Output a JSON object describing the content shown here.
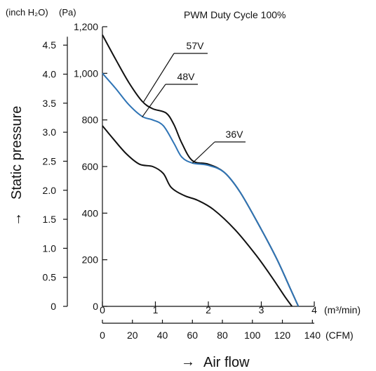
{
  "chart_data": {
    "type": "line",
    "title": "PWM Duty Cycle 100%",
    "xlabel": "Air flow",
    "ylabel": "Static pressure",
    "x_unit": "(m³/min)",
    "x_unit_secondary": "(CFM)",
    "y_unit": "(Pa)",
    "y_unit_secondary": "(inch H₂O)",
    "xlim": [
      0,
      4
    ],
    "ylim": [
      0,
      1200
    ],
    "x_ticks": [
      {
        "value": 0,
        "label": "0"
      },
      {
        "value": 1,
        "label": "1"
      },
      {
        "value": 2,
        "label": "2"
      },
      {
        "value": 3,
        "label": "3"
      },
      {
        "value": 4,
        "label": "4"
      }
    ],
    "x_ticks_secondary": [
      {
        "value": 0,
        "label": "0"
      },
      {
        "value": 20,
        "label": "20"
      },
      {
        "value": 40,
        "label": "40"
      },
      {
        "value": 60,
        "label": "60"
      },
      {
        "value": 80,
        "label": "80"
      },
      {
        "value": 100,
        "label": "100"
      },
      {
        "value": 120,
        "label": "120"
      },
      {
        "value": 140,
        "label": "140"
      }
    ],
    "y_ticks": [
      {
        "value": 0,
        "label": "0"
      },
      {
        "value": 200,
        "label": "200"
      },
      {
        "value": 400,
        "label": "400"
      },
      {
        "value": 600,
        "label": "600"
      },
      {
        "value": 800,
        "label": "800"
      },
      {
        "value": 1000,
        "label": "1,000"
      },
      {
        "value": 1200,
        "label": "1,200"
      }
    ],
    "y_ticks_secondary": [
      {
        "value": 0,
        "label": "0"
      },
      {
        "value": 0.5,
        "label": "0.5"
      },
      {
        "value": 1.0,
        "label": "1.0"
      },
      {
        "value": 1.5,
        "label": "1.5"
      },
      {
        "value": 2.0,
        "label": "2.0"
      },
      {
        "value": 2.5,
        "label": "2.5"
      },
      {
        "value": 3.0,
        "label": "3.0"
      },
      {
        "value": 3.5,
        "label": "3.5"
      },
      {
        "value": 4.0,
        "label": "4.0"
      },
      {
        "value": 4.5,
        "label": "4.5"
      }
    ],
    "grid": false,
    "series": [
      {
        "name": "57V",
        "color": "#111111",
        "x": [
          0,
          0.25,
          0.5,
          0.75,
          0.95,
          1.2,
          1.35,
          1.5,
          1.7,
          2.0,
          2.3,
          2.6,
          3.0,
          3.3,
          3.55,
          3.7
        ],
        "y": [
          1165,
          1060,
          960,
          880,
          848,
          830,
          780,
          700,
          625,
          610,
          575,
          490,
          330,
          200,
          75,
          0
        ]
      },
      {
        "name": "48V",
        "color": "#2f74b5",
        "x": [
          0,
          0.25,
          0.5,
          0.75,
          0.95,
          1.15,
          1.35,
          1.5,
          1.7,
          2.0,
          2.3,
          2.6,
          3.0,
          3.3,
          3.55,
          3.7
        ],
        "y": [
          1000,
          935,
          865,
          815,
          800,
          775,
          700,
          640,
          615,
          605,
          575,
          490,
          330,
          200,
          75,
          0
        ]
      },
      {
        "name": "36V",
        "color": "#111111",
        "x": [
          0,
          0.2,
          0.45,
          0.7,
          0.95,
          1.15,
          1.3,
          1.55,
          1.8,
          2.1,
          2.5,
          2.9,
          3.2,
          3.45,
          3.58
        ],
        "y": [
          775,
          720,
          655,
          610,
          600,
          570,
          510,
          475,
          455,
          415,
          330,
          220,
          125,
          40,
          0
        ]
      }
    ],
    "annotations": [
      {
        "text": "57V",
        "series": "57V",
        "point": [
          0.77,
          875
        ]
      },
      {
        "text": "48V",
        "series": "48V",
        "point": [
          0.75,
          812
        ]
      },
      {
        "text": "36V",
        "series": "36V",
        "point": [
          1.7,
          615
        ]
      }
    ]
  }
}
